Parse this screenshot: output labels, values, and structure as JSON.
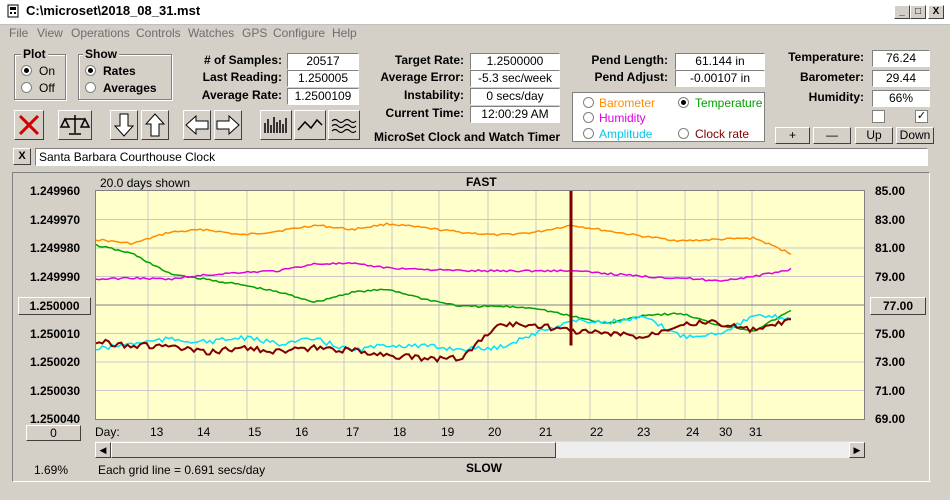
{
  "window": {
    "title": "C:\\microset\\2018_08_31.mst",
    "min": "_",
    "max": "□",
    "close": "X"
  },
  "menu": [
    "File",
    "View",
    "Operations",
    "Controls",
    "Watches",
    "GPS",
    "Configure",
    "Help"
  ],
  "plot_group": {
    "title": "Plot",
    "on": "On",
    "off": "Off"
  },
  "show_group": {
    "title": "Show",
    "rates": "Rates",
    "averages": "Averages"
  },
  "stats": {
    "samples_label": "# of Samples:",
    "samples": "20517",
    "last_label": "Last Reading:",
    "last": "1.250005",
    "avg_label": "Average Rate:",
    "avg": "1.2500109",
    "target_label": "Target Rate:",
    "target": "1.2500000",
    "err_label": "Average Error:",
    "err": "-5.3 sec/week",
    "instab_label": "Instability:",
    "instab": "0 secs/day",
    "time_label": "Current Time:",
    "time": "12:00:29 AM",
    "pendlen_label": "Pend Length:",
    "pendlen": "61.144 in",
    "pendadj_label": "Pend Adjust:",
    "pendadj": "-0.00107 in",
    "temp_label": "Temperature:",
    "temp": "76.24",
    "baro_label": "Barometer:",
    "baro": "29.44",
    "hum_label": "Humidity:",
    "hum": "66%"
  },
  "app_caption": "MicroSet Clock and Watch Timer",
  "sensor_select": {
    "barometer": "Barometer",
    "temperature": "Temperature",
    "humidity": "Humidity",
    "amplitude": "Amplitude",
    "clockrate": "Clock rate"
  },
  "adjust_buttons": {
    "plus": "+",
    "minus": "—",
    "up": "Up",
    "down": "Down"
  },
  "description": "Santa Barbara Courthouse Clock",
  "clear_x": "X",
  "chart_header": {
    "days_shown": "20.0 days shown",
    "fast": "FAST",
    "slow": "SLOW",
    "grid_note": "Each grid line = 0.691 secs/day",
    "percent": "1.69%",
    "day_label": "Day:"
  },
  "left_button": "1.250000",
  "right_button": "77.00",
  "zero_button": "0",
  "colors": {
    "barometer": "#ff8c00",
    "temperature": "#00a000",
    "humidity": "#e000e0",
    "amplitude": "#00e0ff",
    "rate": "#800000",
    "plotbg": "#ffffcc"
  },
  "chart_data": {
    "type": "line",
    "x_ticks": [
      "13",
      "14",
      "15",
      "16",
      "17",
      "18",
      "19",
      "20",
      "21",
      "22",
      "23",
      "24",
      "30",
      "31"
    ],
    "y_left_ticks": [
      "1.249960",
      "1.249970",
      "1.249980",
      "1.249990",
      "1.250000",
      "1.250010",
      "1.250020",
      "1.250030",
      "1.250040"
    ],
    "y_right_ticks": [
      "85.00",
      "83.00",
      "81.00",
      "79.00",
      "77.00",
      "75.00",
      "73.00",
      "71.00",
      "69.00"
    ],
    "series": [
      {
        "name": "Barometer",
        "color": "#ff8c00",
        "values": [
          81.6,
          81.3,
          82.1,
          82.3,
          81.9,
          82.2,
          82.6,
          82.3,
          82.7,
          82.4,
          82.1,
          81.9,
          82.1,
          82.6,
          82.2,
          81.8,
          81.5,
          81.6,
          81.7,
          80.6
        ]
      },
      {
        "name": "Temperature",
        "color": "#00a000",
        "values": [
          81.2,
          80.6,
          79.2,
          78.8,
          78.4,
          77.9,
          77.2,
          77.9,
          78.1,
          77.4,
          76.9,
          76.9,
          76.8,
          76.2,
          75.7,
          76.3,
          76.4,
          75.6,
          75.2,
          76.6
        ]
      },
      {
        "name": "Humidity",
        "color": "#e000e0",
        "values": [
          78.8,
          78.9,
          78.8,
          79.1,
          79.3,
          79.4,
          79.9,
          79.9,
          79.6,
          79.5,
          79.4,
          79.4,
          79.4,
          79.4,
          79.2,
          79.0,
          78.9,
          78.7,
          79.0,
          79.5
        ]
      },
      {
        "name": "Amplitude",
        "color": "#00e0ff",
        "values": [
          73.9,
          74.3,
          74.6,
          74.4,
          74.7,
          74.3,
          74.6,
          73.8,
          74.2,
          74.1,
          73.9,
          74.0,
          75.0,
          75.9,
          75.8,
          76.1,
          74.8,
          75.0,
          76.2,
          76.1
        ]
      },
      {
        "name": "Clock rate",
        "color": "#800000",
        "values": [
          1.2500128,
          1.2500142,
          1.2500145,
          1.2500168,
          1.250015,
          1.2500163,
          1.2500151,
          1.250016,
          1.2500175,
          1.250019,
          1.2500185,
          1.2500068,
          1.250007,
          1.250009,
          1.25001,
          1.2500112,
          1.2500062,
          1.2500063,
          1.250009,
          1.2500055
        ]
      }
    ]
  }
}
